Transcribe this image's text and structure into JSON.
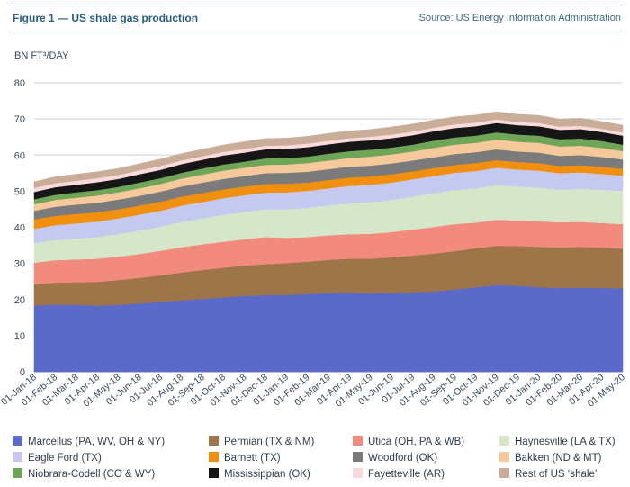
{
  "header": {
    "title": "Figure 1 — US shale gas production",
    "source": "Source: US Energy Information Administration"
  },
  "chart_data": {
    "type": "area",
    "stacked": true,
    "ylabel": "BN FT³/DAY",
    "ylim": [
      0,
      80
    ],
    "yticks": [
      0,
      10,
      20,
      30,
      40,
      50,
      60,
      70,
      80
    ],
    "grid": true,
    "legend": "bottom",
    "categories": [
      "01-Jan-18",
      "01-Feb-18",
      "01-Mar-18",
      "01-Apr-18",
      "01-May-18",
      "01-Jun-18",
      "01-Jul-18",
      "01-Aug-18",
      "01-Sep-18",
      "01-Oct-18",
      "01-Nov-18",
      "01-Dec-18",
      "01-Jan-19",
      "01-Feb-19",
      "01-Mar-19",
      "01-Apr-19",
      "01-May-19",
      "01-Jun-19",
      "01-Jul-19",
      "01-Aug-19",
      "01-Sep-19",
      "01-Oct-19",
      "01-Nov-19",
      "01-Dec-19",
      "01-Jan-20",
      "01-Feb-20",
      "01-Mar-20",
      "01-Apr-20",
      "01-May-20"
    ],
    "series": [
      {
        "name": "Marcellus (PA, WV, OH & NY)",
        "color": "#5b6ac8",
        "values": [
          18.3,
          18.6,
          18.5,
          18.3,
          18.5,
          18.9,
          19.3,
          19.8,
          20.2,
          20.6,
          21.0,
          21.2,
          21.3,
          21.5,
          21.8,
          21.9,
          21.7,
          21.8,
          22.0,
          22.2,
          22.8,
          23.4,
          24.0,
          23.8,
          23.4,
          23.2,
          23.3,
          23.2,
          23.1
        ]
      },
      {
        "name": "Permian (TX & NM)",
        "color": "#9e7449",
        "values": [
          5.9,
          6.1,
          6.3,
          6.6,
          6.9,
          7.1,
          7.4,
          7.7,
          8.0,
          8.2,
          8.4,
          8.6,
          8.8,
          9.0,
          9.2,
          9.4,
          9.6,
          9.9,
          10.2,
          10.5,
          10.6,
          10.8,
          10.9,
          11.0,
          11.2,
          11.2,
          11.3,
          11.2,
          11.0
        ]
      },
      {
        "name": "Utica (OH, PA & WB)",
        "color": "#f28b7e",
        "values": [
          6.0,
          6.2,
          6.3,
          6.4,
          6.5,
          6.6,
          6.8,
          7.0,
          7.1,
          7.2,
          7.3,
          7.5,
          7.0,
          6.8,
          6.8,
          6.8,
          6.9,
          7.0,
          7.2,
          7.4,
          7.5,
          7.1,
          7.2,
          7.1,
          7.1,
          7.0,
          6.9,
          6.8,
          6.8
        ]
      },
      {
        "name": "Haynesville (LA & TX)",
        "color": "#d6e6c9",
        "values": [
          5.4,
          5.6,
          5.8,
          6.0,
          6.3,
          6.5,
          6.7,
          7.0,
          7.2,
          7.5,
          7.6,
          7.7,
          7.9,
          8.1,
          8.3,
          8.6,
          8.8,
          8.9,
          9.1,
          9.3,
          9.4,
          9.5,
          9.6,
          9.4,
          9.3,
          9.0,
          9.2,
          9.2,
          9.2
        ]
      },
      {
        "name": "Eagle Ford (TX)",
        "color": "#c5c9f0",
        "values": [
          4.0,
          4.1,
          4.2,
          4.3,
          4.3,
          4.4,
          4.4,
          4.5,
          4.5,
          4.6,
          4.6,
          4.6,
          4.7,
          4.7,
          4.7,
          4.8,
          4.8,
          4.8,
          4.8,
          4.8,
          4.8,
          4.8,
          4.8,
          4.7,
          4.7,
          4.6,
          4.5,
          4.4,
          4.2
        ]
      },
      {
        "name": "Barnett (TX)",
        "color": "#f0900e",
        "values": [
          2.6,
          2.6,
          2.6,
          2.6,
          2.5,
          2.5,
          2.5,
          2.5,
          2.5,
          2.4,
          2.4,
          2.4,
          2.4,
          2.3,
          2.3,
          2.3,
          2.3,
          2.3,
          2.2,
          2.2,
          2.2,
          2.2,
          2.1,
          2.1,
          2.1,
          2.0,
          2.0,
          2.0,
          1.9
        ]
      },
      {
        "name": "Woodford (OK)",
        "color": "#7b7b7b",
        "values": [
          2.4,
          2.5,
          2.6,
          2.6,
          2.7,
          2.7,
          2.8,
          2.8,
          2.9,
          2.9,
          2.9,
          3.0,
          3.0,
          3.0,
          3.0,
          3.0,
          3.0,
          3.0,
          3.0,
          3.0,
          3.0,
          3.0,
          3.0,
          2.9,
          2.9,
          2.8,
          2.8,
          2.7,
          2.6
        ]
      },
      {
        "name": "Bakken (ND & MT)",
        "color": "#f6c99b",
        "values": [
          1.8,
          1.9,
          1.9,
          2.0,
          2.0,
          2.1,
          2.1,
          2.2,
          2.2,
          2.3,
          2.3,
          2.3,
          2.3,
          2.4,
          2.4,
          2.4,
          2.5,
          2.5,
          2.5,
          2.6,
          2.6,
          2.6,
          2.7,
          2.7,
          2.7,
          2.6,
          2.6,
          2.5,
          2.3
        ]
      },
      {
        "name": "Niobrara-Codell (CO & WY)",
        "color": "#6fa559",
        "values": [
          1.4,
          1.4,
          1.5,
          1.5,
          1.5,
          1.6,
          1.6,
          1.6,
          1.7,
          1.7,
          1.7,
          1.8,
          1.8,
          1.8,
          1.9,
          1.9,
          1.9,
          1.9,
          1.9,
          2.0,
          2.0,
          2.0,
          2.0,
          2.0,
          2.0,
          2.0,
          2.0,
          1.9,
          1.8
        ]
      },
      {
        "name": "Mississippian (OK)",
        "color": "#161616",
        "values": [
          2.0,
          2.1,
          2.1,
          2.2,
          2.2,
          2.3,
          2.3,
          2.4,
          2.4,
          2.5,
          2.5,
          2.5,
          2.5,
          2.6,
          2.6,
          2.6,
          2.6,
          2.6,
          2.6,
          2.6,
          2.6,
          2.6,
          2.6,
          2.6,
          2.6,
          2.6,
          2.6,
          2.5,
          2.5
        ]
      },
      {
        "name": "Fayetteville (AR)",
        "color": "#fadada",
        "values": [
          1.1,
          1.1,
          1.1,
          1.1,
          1.1,
          1.1,
          1.1,
          1.0,
          1.0,
          1.0,
          1.0,
          1.0,
          1.0,
          1.0,
          1.0,
          1.0,
          1.0,
          1.0,
          1.0,
          1.0,
          1.0,
          1.0,
          1.0,
          0.9,
          0.9,
          0.9,
          0.9,
          0.9,
          0.9
        ]
      },
      {
        "name": "Rest of US ‘shale’",
        "color": "#c9ad98",
        "values": [
          1.7,
          1.8,
          1.8,
          1.8,
          1.8,
          1.8,
          1.9,
          1.9,
          1.9,
          1.9,
          2.0,
          2.0,
          2.0,
          2.0,
          2.0,
          2.0,
          2.0,
          2.1,
          2.1,
          2.1,
          2.1,
          2.1,
          2.1,
          2.1,
          2.1,
          2.1,
          2.1,
          2.0,
          2.0
        ]
      }
    ]
  }
}
